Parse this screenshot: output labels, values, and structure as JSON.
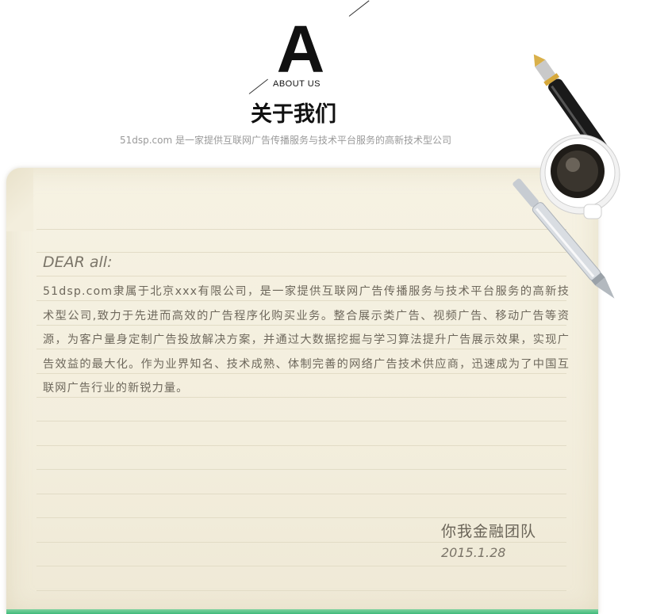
{
  "header": {
    "big_letter": "A",
    "about_label": "ABOUT US",
    "title": "关于我们",
    "subtitle": "51dsp.com 是一家提供互联网广告传播服务与技术平台服务的高新技术型公司"
  },
  "letter": {
    "greeting": "DEAR all:",
    "body": "51dsp.com隶属于北京xxx有限公司，是一家提供互联网广告传播服务与技术平台服务的高新技术型公司,致力于先进而高效的广告程序化购买业务。整合展示类广告、视频广告、移动广告等资源，为客户量身定制广告投放解决方案，并通过大数据挖掘与学习算法提升广告展示效果，实现广告效益的最大化。作为业界知名、技术成熟、体制完善的网络广告技术供应商，迅速成为了中国互联网广告行业的新锐力量。",
    "signature": "你我金融团队",
    "date": "2015.1.28"
  },
  "colors": {
    "paper": "#f4efde",
    "ink": "#6e685c",
    "heading": "#111111",
    "subtitle": "#9a9a9a",
    "accent_green": "#3fb97a"
  },
  "decorations": {
    "fountain_pen": "fountain-pen-icon",
    "coffee_cup": "coffee-cup-icon",
    "ballpoint_pen": "ballpoint-pen-icon"
  }
}
